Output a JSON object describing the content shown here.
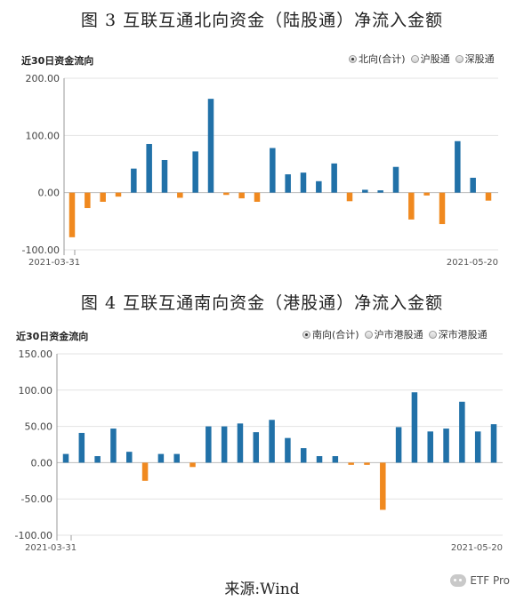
{
  "charts": [
    {
      "figure_title": "图 3 互联互通北向资金（陆股通）净流入金额",
      "chart_heading": "近30日资金流向",
      "legend": [
        {
          "label": "北向(合计)",
          "selected": true
        },
        {
          "label": "沪股通",
          "selected": false
        },
        {
          "label": "深股通",
          "selected": false
        }
      ]
    },
    {
      "figure_title": "图 4 互联互通南向资金（港股通）净流入金额",
      "chart_heading": "近30日资金流向",
      "legend": [
        {
          "label": "南向(合计)",
          "selected": true
        },
        {
          "label": "沪市港股通",
          "selected": false
        },
        {
          "label": "深市港股通",
          "selected": false
        }
      ]
    }
  ],
  "chart_data": [
    {
      "type": "bar",
      "title": "图 3 互联互通北向资金（陆股通）净流入金额",
      "ylim": [
        -100,
        200
      ],
      "yticks": [
        -100,
        0,
        100,
        200
      ],
      "ytick_labels": [
        "-100.00",
        "0.00",
        "100.00",
        "200.00"
      ],
      "x_start_label": "2021-03-31",
      "x_end_label": "2021-05-20",
      "values": [
        -78,
        -27,
        -16,
        -7,
        42,
        85,
        57,
        -9,
        72,
        164,
        -4,
        -10,
        -16,
        78,
        32,
        35,
        20,
        51,
        -15,
        5,
        4,
        45,
        -47,
        -5,
        -55,
        90,
        26,
        -14
      ],
      "colors": {
        "positive": "#2171a8",
        "negative": "#f0891f"
      },
      "grid": true
    },
    {
      "type": "bar",
      "title": "图 4 互联互通南向资金（港股通）净流入金额",
      "ylim": [
        -100,
        150
      ],
      "yticks": [
        -100,
        -50,
        0,
        50,
        100,
        150
      ],
      "ytick_labels": [
        "-100.00",
        "-50.00",
        "0.00",
        "50.00",
        "100.00",
        "150.00"
      ],
      "x_start_label": "2021-03-31",
      "x_end_label": "2021-05-20",
      "values": [
        12,
        41,
        9,
        47,
        15,
        -25,
        12,
        12,
        -6,
        50,
        50,
        54,
        42,
        59,
        34,
        20,
        9,
        9,
        -3,
        -3,
        -65,
        49,
        97,
        43,
        47,
        84,
        43,
        53
      ],
      "colors": {
        "positive": "#2171a8",
        "negative": "#f0891f"
      },
      "grid": true
    }
  ],
  "footer": {
    "source": "来源:Wind",
    "watermark": "ETF Pro"
  }
}
